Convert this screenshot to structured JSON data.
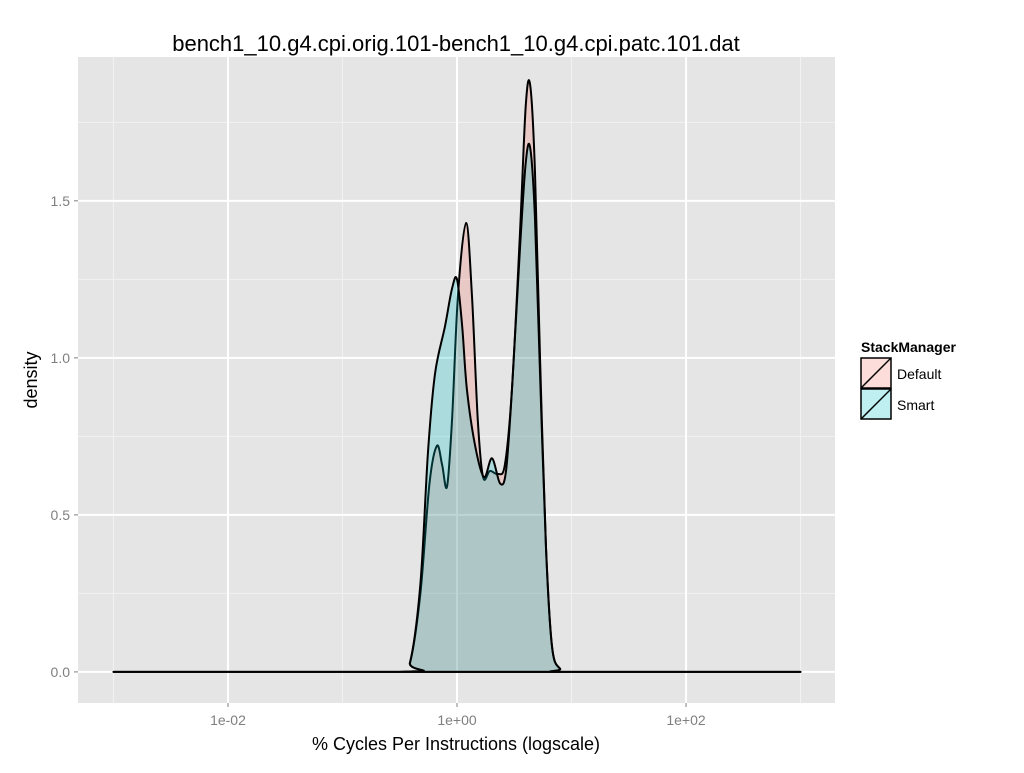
{
  "chart_data": {
    "type": "area",
    "title": "bench1_10.g4.cpi.orig.101-bench1_10.g4.cpi.patc.101.dat",
    "xlabel": "% Cycles Per Instructions (logscale)",
    "ylabel": "density",
    "x_scale": "log10",
    "xlim": [
      0.00049,
      2000
    ],
    "ylim": [
      -0.099,
      1.958
    ],
    "x_ticks": [
      {
        "value": 0.01,
        "label": "1e-02"
      },
      {
        "value": 1,
        "label": "1e+00"
      },
      {
        "value": 100,
        "label": "1e+02"
      }
    ],
    "x_minor": [
      0.001,
      0.1,
      10,
      1000
    ],
    "y_ticks": [
      {
        "value": 0,
        "label": "0.0"
      },
      {
        "value": 0.5,
        "label": "0.5"
      },
      {
        "value": 1,
        "label": "1.0"
      },
      {
        "value": 1.5,
        "label": "1.5"
      }
    ],
    "y_minor": [
      0.25,
      0.75,
      1.25,
      1.75
    ],
    "grid": true,
    "panel_background": "#E5E5E5",
    "legend": {
      "title": "StackManager",
      "position": "right"
    },
    "series": [
      {
        "name": "Default",
        "fill": "#F8766D",
        "alpha": 0.25,
        "x": [
          0.001,
          0.316,
          0.389,
          0.479,
          0.575,
          0.668,
          0.741,
          0.818,
          0.904,
          1.02,
          1.2,
          1.35,
          1.52,
          1.69,
          1.94,
          2.28,
          2.62,
          3.02,
          3.55,
          3.98,
          4.35,
          4.79,
          5.31,
          5.98,
          6.76,
          7.94,
          9.7,
          1000
        ],
        "y": [
          0,
          0,
          0.03,
          0.25,
          0.6,
          0.72,
          0.66,
          0.59,
          0.8,
          1.2,
          1.43,
          1.2,
          0.8,
          0.62,
          0.64,
          0.63,
          0.66,
          0.9,
          1.4,
          1.8,
          1.87,
          1.6,
          1.0,
          0.4,
          0.08,
          0.01,
          0,
          0
        ]
      },
      {
        "name": "Smart",
        "fill": "#00BFC4",
        "alpha": 0.25,
        "x": [
          0.001,
          0.316,
          0.389,
          0.479,
          0.558,
          0.643,
          0.785,
          0.904,
          1.0,
          1.11,
          1.22,
          1.44,
          1.72,
          2.02,
          2.38,
          2.68,
          3.02,
          3.55,
          3.98,
          4.35,
          4.79,
          5.31,
          5.98,
          6.76,
          7.94,
          9.7,
          1000
        ],
        "y": [
          0,
          0,
          0.03,
          0.28,
          0.7,
          0.95,
          1.1,
          1.22,
          1.25,
          1.1,
          0.9,
          0.72,
          0.62,
          0.68,
          0.6,
          0.64,
          0.9,
          1.35,
          1.62,
          1.67,
          1.45,
          0.95,
          0.4,
          0.08,
          0.01,
          0,
          0
        ]
      }
    ]
  }
}
